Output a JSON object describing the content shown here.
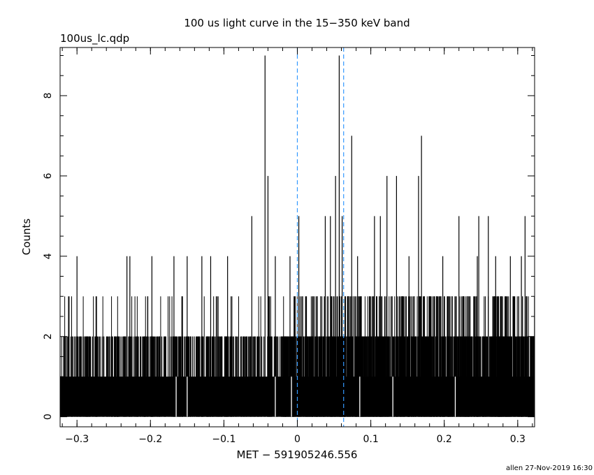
{
  "chart_data": {
    "type": "bar",
    "style": "histogram",
    "title": "100 us light curve in the 15−350 keV band",
    "file_label": "100us_lc.qdp",
    "xlabel": "MET − 591905246.556",
    "ylabel": "Counts",
    "footer": "allen 27-Nov-2019 16:30",
    "xlim": [
      -0.323,
      0.323
    ],
    "ylim": [
      -0.25,
      9.2
    ],
    "x_ticks": [
      -0.3,
      -0.2,
      -0.1,
      0,
      0.1,
      0.2,
      0.3
    ],
    "x_tick_labels": [
      "−0.3",
      "−0.2",
      "−0.1",
      "0",
      "0.1",
      "0.2",
      "0.3"
    ],
    "y_ticks": [
      0,
      2,
      4,
      6,
      8
    ],
    "y_tick_labels": [
      "0",
      "2",
      "4",
      "6",
      "8"
    ],
    "bin_width": 0.0001,
    "vertical_lines": [
      {
        "x": 0.0,
        "color": "#3399ff",
        "style": "dashed"
      },
      {
        "x": 0.063,
        "color": "#3399ff",
        "style": "dashed"
      }
    ],
    "colors": {
      "histogram": "#000000",
      "marker_lines": "#3399ff",
      "background": "#ffffff"
    },
    "grid": false,
    "legend": "none",
    "peaks": [
      {
        "x": -0.3,
        "value": 4
      },
      {
        "x": -0.232,
        "value": 4
      },
      {
        "x": -0.228,
        "value": 4
      },
      {
        "x": -0.198,
        "value": 4
      },
      {
        "x": -0.168,
        "value": 4
      },
      {
        "x": -0.15,
        "value": 4
      },
      {
        "x": -0.13,
        "value": 4
      },
      {
        "x": -0.118,
        "value": 4
      },
      {
        "x": -0.095,
        "value": 4
      },
      {
        "x": -0.062,
        "value": 5
      },
      {
        "x": -0.044,
        "value": 9
      },
      {
        "x": -0.04,
        "value": 6
      },
      {
        "x": -0.03,
        "value": 4
      },
      {
        "x": -0.01,
        "value": 4
      },
      {
        "x": 0.002,
        "value": 5
      },
      {
        "x": 0.038,
        "value": 5
      },
      {
        "x": 0.045,
        "value": 5
      },
      {
        "x": 0.052,
        "value": 6
      },
      {
        "x": 0.057,
        "value": 9
      },
      {
        "x": 0.061,
        "value": 5
      },
      {
        "x": 0.074,
        "value": 7
      },
      {
        "x": 0.082,
        "value": 4
      },
      {
        "x": 0.105,
        "value": 5
      },
      {
        "x": 0.113,
        "value": 5
      },
      {
        "x": 0.122,
        "value": 6
      },
      {
        "x": 0.135,
        "value": 6
      },
      {
        "x": 0.152,
        "value": 4
      },
      {
        "x": 0.165,
        "value": 6
      },
      {
        "x": 0.169,
        "value": 7
      },
      {
        "x": 0.198,
        "value": 4
      },
      {
        "x": 0.22,
        "value": 5
      },
      {
        "x": 0.245,
        "value": 4
      },
      {
        "x": 0.247,
        "value": 5
      },
      {
        "x": 0.26,
        "value": 5
      },
      {
        "x": 0.27,
        "value": 4
      },
      {
        "x": 0.29,
        "value": 4
      },
      {
        "x": 0.305,
        "value": 4
      },
      {
        "x": 0.31,
        "value": 5
      }
    ],
    "gaps": [
      -0.165,
      -0.15,
      -0.03,
      -0.008,
      0.085,
      0.13,
      0.215
    ]
  }
}
